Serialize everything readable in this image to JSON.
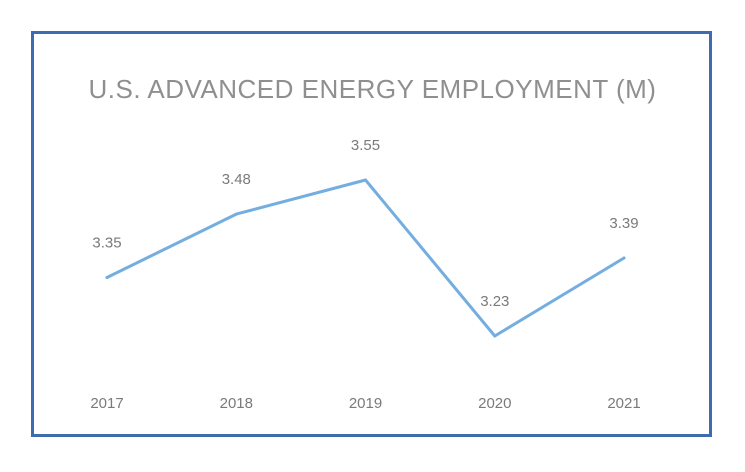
{
  "chart_data": {
    "type": "line",
    "title": "U.S. ADVANCED ENERGY EMPLOYMENT (M)",
    "categories": [
      "2017",
      "2018",
      "2019",
      "2020",
      "2021"
    ],
    "values": [
      3.35,
      3.48,
      3.55,
      3.23,
      3.39
    ],
    "data_labels": [
      "3.35",
      "3.48",
      "3.55",
      "3.23",
      "3.39"
    ],
    "xlabel": "",
    "ylabel": "",
    "ylim": [
      3.0,
      3.8
    ],
    "grid": false,
    "legend": "none",
    "colors": {
      "line": "#74aee0",
      "frame": "#3f6cb1",
      "text": "#7a7a7a"
    }
  }
}
